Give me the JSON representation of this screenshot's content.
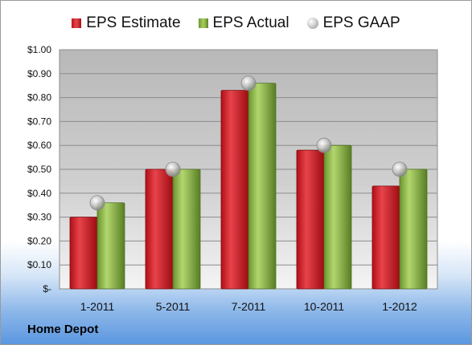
{
  "chart_data": {
    "type": "bar",
    "categories": [
      "1-2011",
      "5-2011",
      "7-2011",
      "10-2011",
      "1-2012"
    ],
    "series": [
      {
        "name": "EPS Estimate",
        "type": "bar",
        "color": "#c8151e",
        "values": [
          0.3,
          0.5,
          0.83,
          0.58,
          0.43
        ]
      },
      {
        "name": "EPS Actual",
        "type": "bar",
        "color": "#8fbb45",
        "values": [
          0.36,
          0.5,
          0.86,
          0.6,
          0.5
        ]
      },
      {
        "name": "EPS GAAP",
        "type": "scatter",
        "color": "#b8b8b8",
        "values": [
          0.36,
          0.5,
          0.86,
          0.6,
          0.5
        ]
      }
    ],
    "ylim": [
      0,
      1.0
    ],
    "yticks": [
      0,
      0.1,
      0.2,
      0.3,
      0.4,
      0.5,
      0.6,
      0.7,
      0.8,
      0.9,
      1.0
    ],
    "ytick_labels": [
      "$-",
      "$0.10",
      "$0.20",
      "$0.30",
      "$0.40",
      "$0.50",
      "$0.60",
      "$0.70",
      "$0.80",
      "$0.90",
      "$1.00"
    ],
    "grid": true,
    "legend_position": "top",
    "footer": "Home Depot"
  }
}
